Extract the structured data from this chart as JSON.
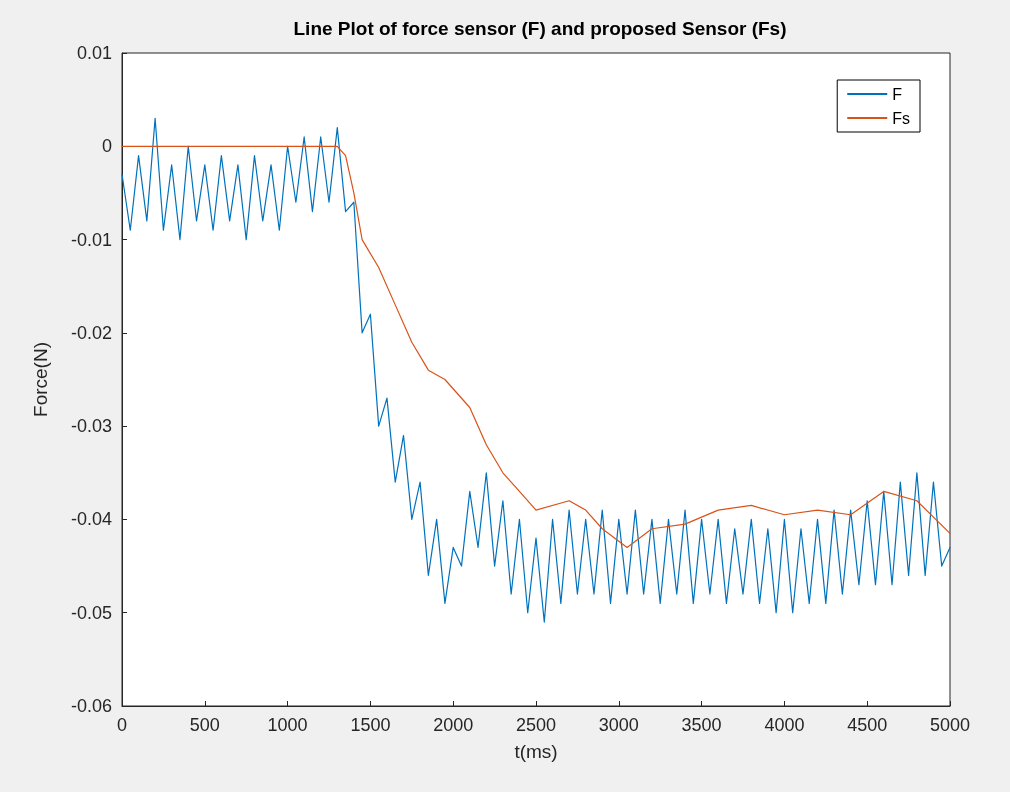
{
  "chart_data": {
    "type": "line",
    "title": "Line Plot of force sensor (F) and proposed Sensor (Fs)",
    "xlabel": "t(ms)",
    "ylabel": "Force(N)",
    "xlim": [
      0,
      5000
    ],
    "xticks": [
      0,
      500,
      1000,
      1500,
      2000,
      2500,
      3000,
      3500,
      4000,
      4500,
      5000
    ],
    "ylim": [
      -0.06,
      0.01
    ],
    "yticks": [
      -0.06,
      -0.05,
      -0.04,
      -0.03,
      -0.02,
      -0.01,
      0,
      0.01
    ],
    "grid": false,
    "legend": "top right",
    "marker": "none",
    "line_style": "solid",
    "series": [
      {
        "name": "F",
        "color": "#0072bd",
        "x": [
          0,
          50,
          100,
          150,
          200,
          250,
          300,
          350,
          400,
          450,
          500,
          550,
          600,
          650,
          700,
          750,
          800,
          850,
          900,
          950,
          1000,
          1050,
          1100,
          1150,
          1200,
          1250,
          1300,
          1350,
          1400,
          1450,
          1500,
          1550,
          1600,
          1650,
          1700,
          1750,
          1800,
          1850,
          1900,
          1950,
          2000,
          2050,
          2100,
          2150,
          2200,
          2250,
          2300,
          2350,
          2400,
          2450,
          2500,
          2550,
          2600,
          2650,
          2700,
          2750,
          2800,
          2850,
          2900,
          2950,
          3000,
          3050,
          3100,
          3150,
          3200,
          3250,
          3300,
          3350,
          3400,
          3450,
          3500,
          3550,
          3600,
          3650,
          3700,
          3750,
          3800,
          3850,
          3900,
          3950,
          4000,
          4050,
          4100,
          4150,
          4200,
          4250,
          4300,
          4350,
          4400,
          4450,
          4500,
          4550,
          4600,
          4650,
          4700,
          4750,
          4800,
          4850,
          4900,
          4950,
          5000
        ],
        "values": [
          -0.003,
          -0.009,
          -0.001,
          -0.008,
          0.003,
          -0.009,
          -0.002,
          -0.01,
          0.0,
          -0.008,
          -0.002,
          -0.009,
          -0.001,
          -0.008,
          -0.002,
          -0.01,
          -0.001,
          -0.008,
          -0.002,
          -0.009,
          0.0,
          -0.006,
          0.001,
          -0.007,
          0.001,
          -0.006,
          0.002,
          -0.007,
          -0.006,
          -0.02,
          -0.018,
          -0.03,
          -0.027,
          -0.036,
          -0.031,
          -0.04,
          -0.036,
          -0.046,
          -0.04,
          -0.049,
          -0.043,
          -0.045,
          -0.037,
          -0.043,
          -0.035,
          -0.045,
          -0.038,
          -0.048,
          -0.04,
          -0.05,
          -0.042,
          -0.051,
          -0.04,
          -0.049,
          -0.039,
          -0.048,
          -0.04,
          -0.048,
          -0.039,
          -0.049,
          -0.04,
          -0.048,
          -0.039,
          -0.048,
          -0.04,
          -0.049,
          -0.04,
          -0.048,
          -0.039,
          -0.049,
          -0.04,
          -0.048,
          -0.04,
          -0.049,
          -0.041,
          -0.048,
          -0.04,
          -0.049,
          -0.041,
          -0.05,
          -0.04,
          -0.05,
          -0.041,
          -0.049,
          -0.04,
          -0.049,
          -0.039,
          -0.048,
          -0.039,
          -0.047,
          -0.038,
          -0.047,
          -0.037,
          -0.047,
          -0.036,
          -0.046,
          -0.035,
          -0.046,
          -0.036,
          -0.045,
          -0.043
        ]
      },
      {
        "name": "Fs",
        "color": "#d95319",
        "x": [
          0,
          200,
          400,
          600,
          800,
          1000,
          1200,
          1300,
          1350,
          1400,
          1450,
          1550,
          1650,
          1750,
          1850,
          1950,
          2100,
          2200,
          2300,
          2400,
          2500,
          2700,
          2800,
          2900,
          3050,
          3200,
          3400,
          3600,
          3800,
          4000,
          4200,
          4400,
          4600,
          4800,
          5000
        ],
        "values": [
          0,
          0,
          0,
          0,
          0,
          0,
          0,
          0,
          -0.001,
          -0.005,
          -0.01,
          -0.013,
          -0.017,
          -0.021,
          -0.024,
          -0.025,
          -0.028,
          -0.032,
          -0.035,
          -0.037,
          -0.039,
          -0.038,
          -0.039,
          -0.041,
          -0.043,
          -0.041,
          -0.0405,
          -0.039,
          -0.0385,
          -0.0395,
          -0.039,
          -0.0395,
          -0.037,
          -0.038,
          -0.0415
        ]
      }
    ]
  }
}
